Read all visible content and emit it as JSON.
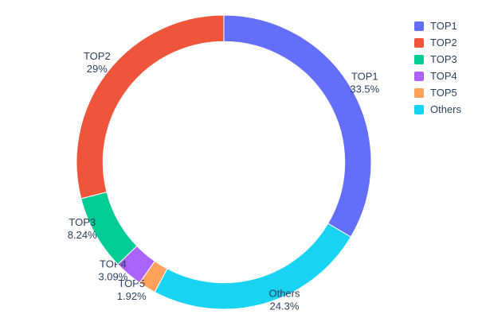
{
  "page": {
    "background": "#ffffff",
    "text_color": "#2a3f5f"
  },
  "chart_data": {
    "type": "pie",
    "title": "",
    "hole": 0.82,
    "labels": [
      "TOP1",
      "TOP2",
      "TOP3",
      "TOP4",
      "TOP5",
      "Others"
    ],
    "values": [
      33.5,
      29,
      8.24,
      3.09,
      1.92,
      24.3
    ],
    "percent_labels": {
      "TOP1": "33.5%",
      "TOP2": "29%",
      "TOP3": "8.24%",
      "TOP4": "3.09%",
      "TOP5": "1.92%",
      "Others": "24.3%"
    },
    "colors": {
      "TOP1": "#636EFA",
      "TOP2": "#EF553B",
      "TOP3": "#00CC96",
      "TOP4": "#AB63FA",
      "TOP5": "#FFA15A",
      "Others": "#19D3F3"
    },
    "clockwise_order": [
      "TOP1",
      "Others",
      "TOP5",
      "TOP4",
      "TOP3",
      "TOP2"
    ],
    "rotation_deg": 0,
    "slice_border_color": "#ffffff",
    "label_text_color": "#2a3f5f",
    "legend": {
      "position": "top-right",
      "entries": [
        "TOP1",
        "TOP2",
        "TOP3",
        "TOP4",
        "TOP5",
        "Others"
      ]
    }
  }
}
